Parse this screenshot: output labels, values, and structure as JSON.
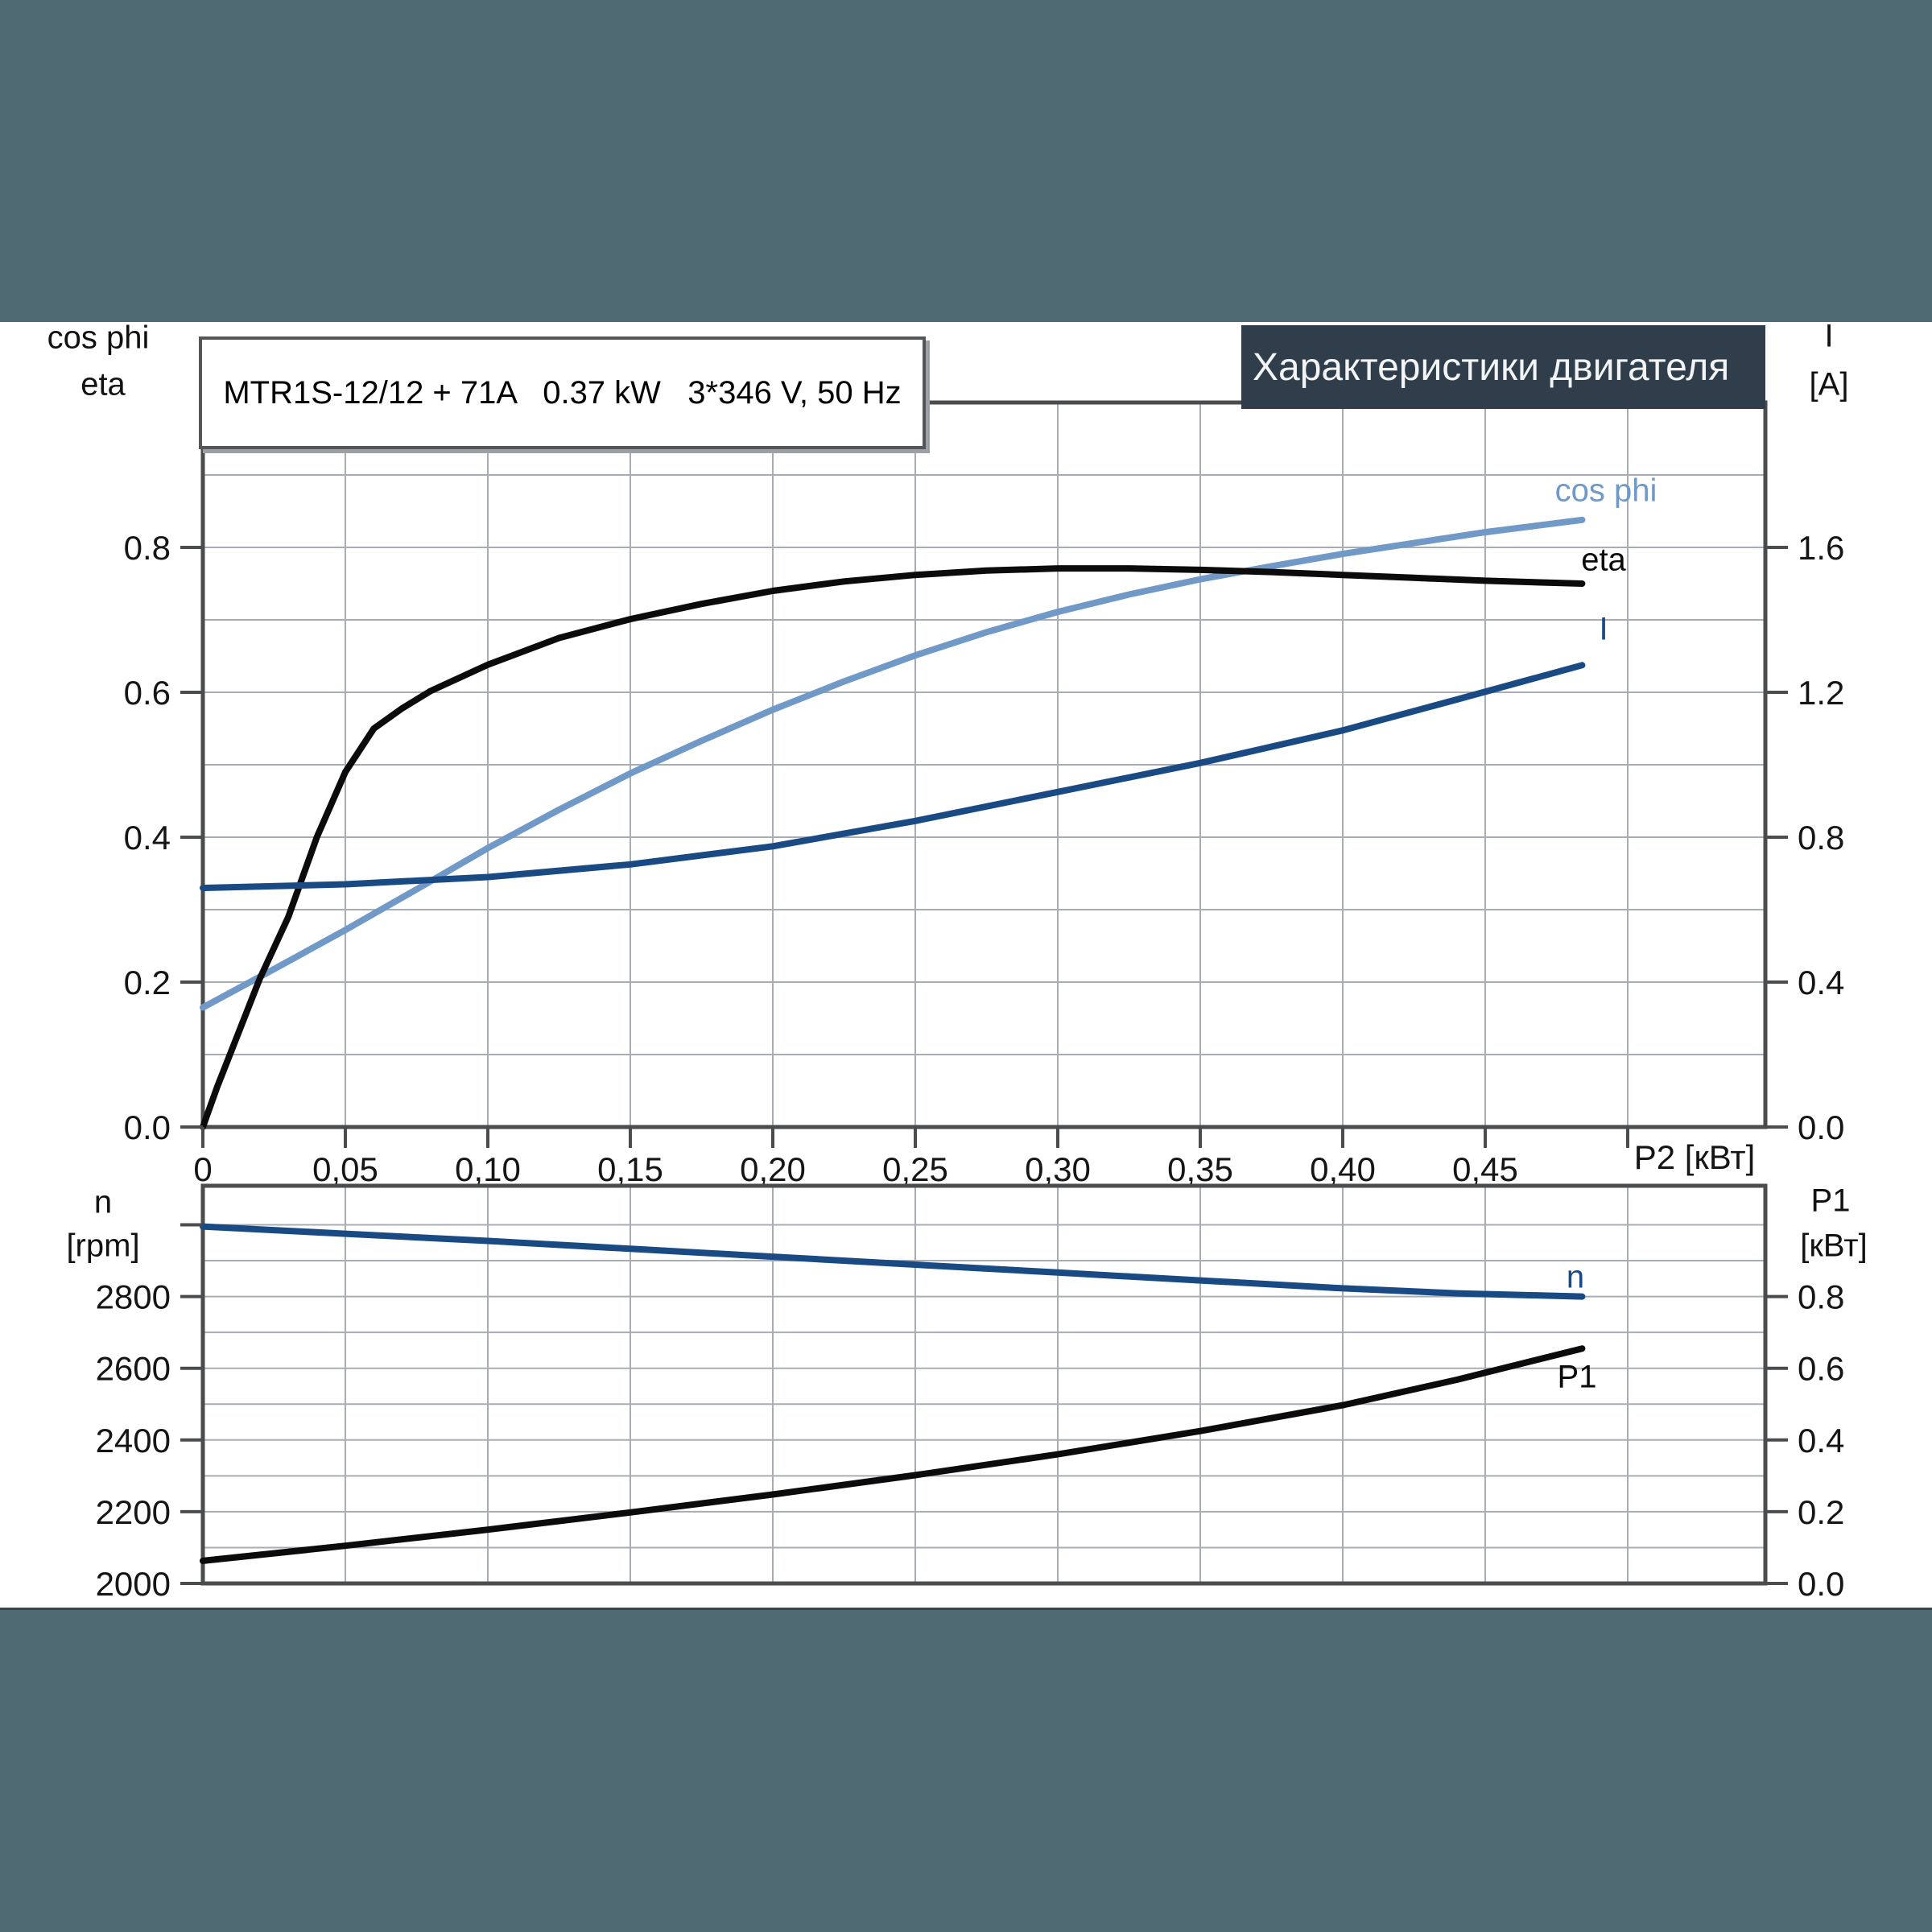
{
  "header": {
    "title": "Характеристики двигателя"
  },
  "title_box": {
    "text": "MTR1S-12/12 + 71A   0.37 kW   3*346 V, 50 Hz"
  },
  "axis_headers": {
    "top_left_1": "cos phi",
    "top_left_2": "eta",
    "top_right_1": "I",
    "top_right_2": "[A]",
    "bottom_left_1": "n",
    "bottom_left_2": "[rpm]",
    "bottom_right_1": "P1",
    "bottom_right_2": "[кВт]"
  },
  "curve_labels": {
    "cos_phi": "cos phi",
    "eta": "eta",
    "current": "I",
    "speed": "n",
    "power_in": "P1"
  },
  "x_axis_unit": "P2 [кВт]",
  "colors": {
    "background": "#506a74",
    "panel": "#ffffff",
    "header_bg": "#303d4b",
    "header_text": "#f2f4f6",
    "frame": "#4a4c4e",
    "gridline": "#a8adb3",
    "black_curve": "#0b0b0b",
    "dark_blue": "#1a4a84",
    "light_blue": "#7099c8"
  },
  "chart_data": [
    {
      "type": "line",
      "title": "MTR1S-12/12 + 71A 0.37 kW 3*346 V, 50 Hz",
      "xlabel": "P2 [кВт]",
      "x_range": [
        0,
        0.548
      ],
      "grid": true,
      "x_grid": [
        0.05,
        0.1,
        0.15,
        0.2,
        0.25,
        0.3,
        0.35,
        0.4,
        0.45,
        0.5
      ],
      "left_grid": [
        0.1,
        0.2,
        0.3,
        0.4,
        0.5,
        0.6,
        0.7,
        0.8,
        0.9
      ],
      "x_tick_values": [
        0,
        0.05,
        0.1,
        0.15,
        0.2,
        0.25,
        0.3,
        0.35,
        0.4,
        0.45,
        0.5
      ],
      "x_tick_labels": [
        "0",
        "0,05",
        "0,10",
        "0,15",
        "0,20",
        "0,25",
        "0,30",
        "0,35",
        "0,40",
        "0,45",
        ""
      ],
      "left_axis": {
        "label": "cos phi / eta",
        "range": [
          0,
          1.0
        ],
        "tick_values": [
          0,
          0.2,
          0.4,
          0.6,
          0.8
        ],
        "tick_labels": [
          "0.0",
          "0.2",
          "0.4",
          "0.6",
          "0.8"
        ]
      },
      "right_axis": {
        "label": "I [A]",
        "range": [
          0,
          2.0
        ],
        "tick_values": [
          0,
          0.4,
          0.8,
          1.2,
          1.6
        ],
        "tick_labels": [
          "0.0",
          "0.4",
          "0.8",
          "1.2",
          "1.6"
        ]
      },
      "series": [
        {
          "id": "cos_phi",
          "name": "cos phi",
          "scale": "top_left",
          "color": "#7099c8",
          "x": [
            0,
            0.025,
            0.05,
            0.075,
            0.1,
            0.125,
            0.15,
            0.175,
            0.2,
            0.225,
            0.25,
            0.275,
            0.3,
            0.325,
            0.35,
            0.375,
            0.4,
            0.425,
            0.45,
            0.484
          ],
          "y": [
            0.165,
            0.218,
            0.272,
            0.328,
            0.385,
            0.438,
            0.488,
            0.533,
            0.576,
            0.615,
            0.651,
            0.683,
            0.711,
            0.735,
            0.756,
            0.774,
            0.791,
            0.806,
            0.821,
            0.838
          ]
        },
        {
          "id": "eta",
          "name": "eta",
          "scale": "top_left",
          "color": "#0b0b0b",
          "x": [
            0,
            0.005,
            0.012,
            0.02,
            0.03,
            0.04,
            0.05,
            0.06,
            0.07,
            0.08,
            0.1,
            0.125,
            0.15,
            0.175,
            0.2,
            0.225,
            0.25,
            0.275,
            0.3,
            0.325,
            0.35,
            0.375,
            0.4,
            0.425,
            0.45,
            0.484
          ],
          "y": [
            0,
            0.055,
            0.125,
            0.205,
            0.29,
            0.4,
            0.49,
            0.55,
            0.578,
            0.602,
            0.638,
            0.675,
            0.701,
            0.722,
            0.74,
            0.753,
            0.762,
            0.768,
            0.771,
            0.771,
            0.769,
            0.766,
            0.762,
            0.758,
            0.754,
            0.75
          ]
        },
        {
          "id": "current",
          "name": "I",
          "scale": "top_right",
          "color": "#1a4a84",
          "x": [
            0,
            0.05,
            0.1,
            0.15,
            0.2,
            0.25,
            0.3,
            0.35,
            0.4,
            0.44,
            0.484
          ],
          "y": [
            0.66,
            0.67,
            0.69,
            0.725,
            0.775,
            0.845,
            0.925,
            1.005,
            1.095,
            1.18,
            1.275
          ]
        }
      ]
    },
    {
      "type": "line",
      "xlabel": "P2 [кВт]",
      "x_range": [
        0,
        0.548
      ],
      "grid": true,
      "x_grid": [
        0.05,
        0.1,
        0.15,
        0.2,
        0.25,
        0.3,
        0.35,
        0.4,
        0.45,
        0.5
      ],
      "rpm_grid": [
        2100,
        2200,
        2300,
        2400,
        2500,
        2600,
        2700,
        2800,
        2900,
        3000
      ],
      "left_axis": {
        "label": "n [rpm]",
        "range": [
          2000,
          3100
        ],
        "tick_values": [
          2000,
          2200,
          2400,
          2600,
          2800,
          3000
        ],
        "tick_labels": [
          "2000",
          "2200",
          "2400",
          "2600",
          "2800",
          ""
        ]
      },
      "right_axis": {
        "label": "P1 [кВт]",
        "range": [
          0,
          1.1
        ],
        "tick_values": [
          0,
          0.2,
          0.4,
          0.6,
          0.8
        ],
        "tick_labels": [
          "0.0",
          "0.2",
          "0.4",
          "0.6",
          "0.8"
        ]
      },
      "series": [
        {
          "id": "speed",
          "name": "n",
          "scale": "bot_left",
          "color": "#1a4a84",
          "x": [
            0,
            0.05,
            0.1,
            0.15,
            0.2,
            0.25,
            0.3,
            0.35,
            0.4,
            0.44,
            0.484
          ],
          "y": [
            2995,
            2975,
            2955,
            2933,
            2911,
            2889,
            2867,
            2845,
            2823,
            2809,
            2800
          ]
        },
        {
          "id": "power_in",
          "name": "P1",
          "scale": "bot_right",
          "color": "#0b0b0b",
          "x": [
            0,
            0.05,
            0.1,
            0.15,
            0.2,
            0.25,
            0.3,
            0.35,
            0.4,
            0.44,
            0.484
          ],
          "y": [
            0.063,
            0.105,
            0.15,
            0.198,
            0.248,
            0.302,
            0.36,
            0.425,
            0.497,
            0.568,
            0.655
          ]
        }
      ]
    }
  ]
}
